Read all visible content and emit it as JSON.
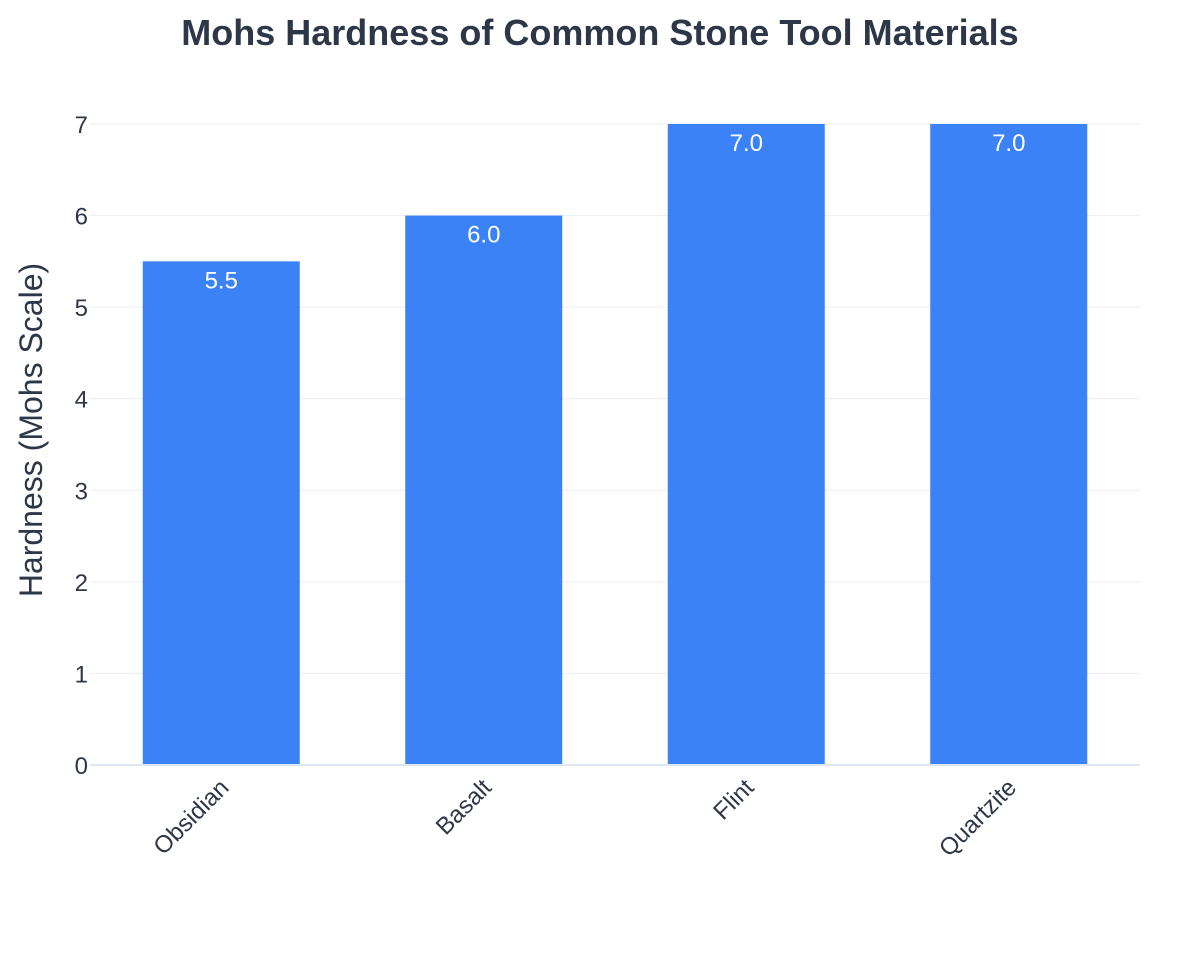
{
  "chart_data": {
    "type": "bar",
    "title": "Mohs Hardness of Common Stone Tool Materials",
    "xlabel": "",
    "ylabel": "Hardness (Mohs Scale)",
    "categories": [
      "Obsidian",
      "Basalt",
      "Flint",
      "Quartzite"
    ],
    "values": [
      5.5,
      6.0,
      7.0,
      7.0
    ],
    "data_labels": [
      "5.5",
      "6.0",
      "7.0",
      "7.0"
    ],
    "ylim": [
      0,
      7
    ],
    "yticks": [
      "0",
      "1",
      "2",
      "3",
      "4",
      "5",
      "6",
      "7"
    ],
    "grid": true,
    "legend": "none",
    "colors": {
      "bar": "#3b82f6",
      "text": "#2d3748",
      "grid": "#e9edf2",
      "axis": "#dfe7f0",
      "data_label": "#ffffff"
    }
  }
}
